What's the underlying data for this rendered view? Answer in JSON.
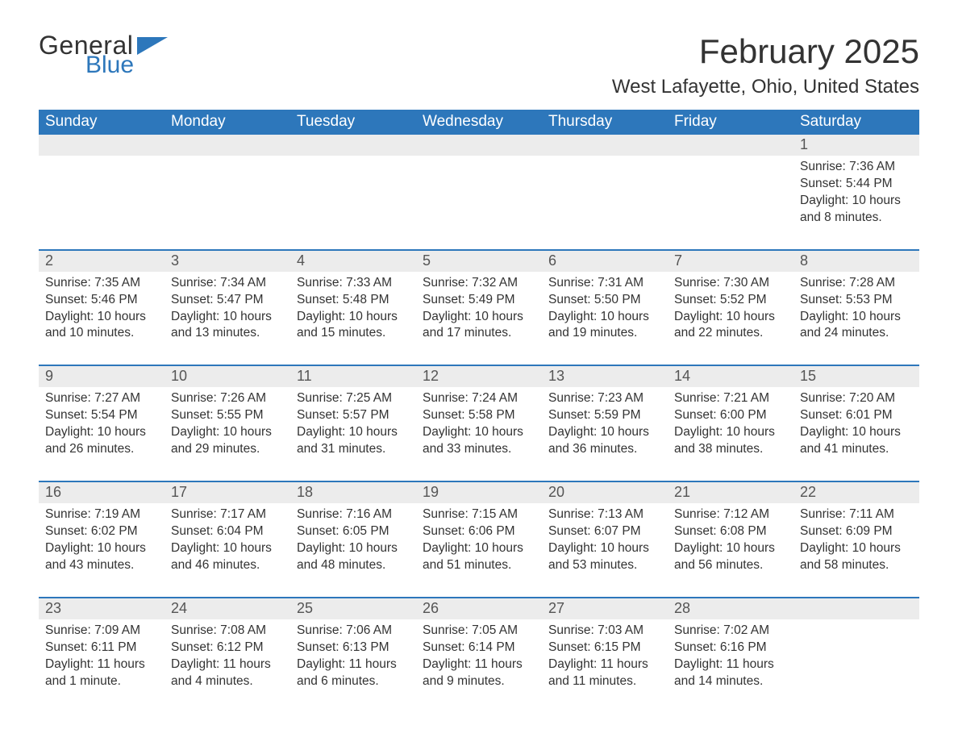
{
  "brand": {
    "word1": "General",
    "word2": "Blue",
    "word1_color": "#333333",
    "word2_color": "#2d77bb",
    "flag_color": "#2d77bb"
  },
  "title": "February 2025",
  "location": "West Lafayette, Ohio, United States",
  "colors": {
    "header_bg": "#2d77bb",
    "header_text": "#ffffff",
    "strip_bg": "#ececec",
    "rule": "#2d77bb",
    "body_text": "#333333"
  },
  "weekdays": [
    "Sunday",
    "Monday",
    "Tuesday",
    "Wednesday",
    "Thursday",
    "Friday",
    "Saturday"
  ],
  "weeks": [
    {
      "days": [
        {
          "num": "",
          "sunrise": "",
          "sunset": "",
          "daylight1": "",
          "daylight2": ""
        },
        {
          "num": "",
          "sunrise": "",
          "sunset": "",
          "daylight1": "",
          "daylight2": ""
        },
        {
          "num": "",
          "sunrise": "",
          "sunset": "",
          "daylight1": "",
          "daylight2": ""
        },
        {
          "num": "",
          "sunrise": "",
          "sunset": "",
          "daylight1": "",
          "daylight2": ""
        },
        {
          "num": "",
          "sunrise": "",
          "sunset": "",
          "daylight1": "",
          "daylight2": ""
        },
        {
          "num": "",
          "sunrise": "",
          "sunset": "",
          "daylight1": "",
          "daylight2": ""
        },
        {
          "num": "1",
          "sunrise": "Sunrise: 7:36 AM",
          "sunset": "Sunset: 5:44 PM",
          "daylight1": "Daylight: 10 hours",
          "daylight2": "and 8 minutes."
        }
      ]
    },
    {
      "days": [
        {
          "num": "2",
          "sunrise": "Sunrise: 7:35 AM",
          "sunset": "Sunset: 5:46 PM",
          "daylight1": "Daylight: 10 hours",
          "daylight2": "and 10 minutes."
        },
        {
          "num": "3",
          "sunrise": "Sunrise: 7:34 AM",
          "sunset": "Sunset: 5:47 PM",
          "daylight1": "Daylight: 10 hours",
          "daylight2": "and 13 minutes."
        },
        {
          "num": "4",
          "sunrise": "Sunrise: 7:33 AM",
          "sunset": "Sunset: 5:48 PM",
          "daylight1": "Daylight: 10 hours",
          "daylight2": "and 15 minutes."
        },
        {
          "num": "5",
          "sunrise": "Sunrise: 7:32 AM",
          "sunset": "Sunset: 5:49 PM",
          "daylight1": "Daylight: 10 hours",
          "daylight2": "and 17 minutes."
        },
        {
          "num": "6",
          "sunrise": "Sunrise: 7:31 AM",
          "sunset": "Sunset: 5:50 PM",
          "daylight1": "Daylight: 10 hours",
          "daylight2": "and 19 minutes."
        },
        {
          "num": "7",
          "sunrise": "Sunrise: 7:30 AM",
          "sunset": "Sunset: 5:52 PM",
          "daylight1": "Daylight: 10 hours",
          "daylight2": "and 22 minutes."
        },
        {
          "num": "8",
          "sunrise": "Sunrise: 7:28 AM",
          "sunset": "Sunset: 5:53 PM",
          "daylight1": "Daylight: 10 hours",
          "daylight2": "and 24 minutes."
        }
      ]
    },
    {
      "days": [
        {
          "num": "9",
          "sunrise": "Sunrise: 7:27 AM",
          "sunset": "Sunset: 5:54 PM",
          "daylight1": "Daylight: 10 hours",
          "daylight2": "and 26 minutes."
        },
        {
          "num": "10",
          "sunrise": "Sunrise: 7:26 AM",
          "sunset": "Sunset: 5:55 PM",
          "daylight1": "Daylight: 10 hours",
          "daylight2": "and 29 minutes."
        },
        {
          "num": "11",
          "sunrise": "Sunrise: 7:25 AM",
          "sunset": "Sunset: 5:57 PM",
          "daylight1": "Daylight: 10 hours",
          "daylight2": "and 31 minutes."
        },
        {
          "num": "12",
          "sunrise": "Sunrise: 7:24 AM",
          "sunset": "Sunset: 5:58 PM",
          "daylight1": "Daylight: 10 hours",
          "daylight2": "and 33 minutes."
        },
        {
          "num": "13",
          "sunrise": "Sunrise: 7:23 AM",
          "sunset": "Sunset: 5:59 PM",
          "daylight1": "Daylight: 10 hours",
          "daylight2": "and 36 minutes."
        },
        {
          "num": "14",
          "sunrise": "Sunrise: 7:21 AM",
          "sunset": "Sunset: 6:00 PM",
          "daylight1": "Daylight: 10 hours",
          "daylight2": "and 38 minutes."
        },
        {
          "num": "15",
          "sunrise": "Sunrise: 7:20 AM",
          "sunset": "Sunset: 6:01 PM",
          "daylight1": "Daylight: 10 hours",
          "daylight2": "and 41 minutes."
        }
      ]
    },
    {
      "days": [
        {
          "num": "16",
          "sunrise": "Sunrise: 7:19 AM",
          "sunset": "Sunset: 6:02 PM",
          "daylight1": "Daylight: 10 hours",
          "daylight2": "and 43 minutes."
        },
        {
          "num": "17",
          "sunrise": "Sunrise: 7:17 AM",
          "sunset": "Sunset: 6:04 PM",
          "daylight1": "Daylight: 10 hours",
          "daylight2": "and 46 minutes."
        },
        {
          "num": "18",
          "sunrise": "Sunrise: 7:16 AM",
          "sunset": "Sunset: 6:05 PM",
          "daylight1": "Daylight: 10 hours",
          "daylight2": "and 48 minutes."
        },
        {
          "num": "19",
          "sunrise": "Sunrise: 7:15 AM",
          "sunset": "Sunset: 6:06 PM",
          "daylight1": "Daylight: 10 hours",
          "daylight2": "and 51 minutes."
        },
        {
          "num": "20",
          "sunrise": "Sunrise: 7:13 AM",
          "sunset": "Sunset: 6:07 PM",
          "daylight1": "Daylight: 10 hours",
          "daylight2": "and 53 minutes."
        },
        {
          "num": "21",
          "sunrise": "Sunrise: 7:12 AM",
          "sunset": "Sunset: 6:08 PM",
          "daylight1": "Daylight: 10 hours",
          "daylight2": "and 56 minutes."
        },
        {
          "num": "22",
          "sunrise": "Sunrise: 7:11 AM",
          "sunset": "Sunset: 6:09 PM",
          "daylight1": "Daylight: 10 hours",
          "daylight2": "and 58 minutes."
        }
      ]
    },
    {
      "days": [
        {
          "num": "23",
          "sunrise": "Sunrise: 7:09 AM",
          "sunset": "Sunset: 6:11 PM",
          "daylight1": "Daylight: 11 hours",
          "daylight2": "and 1 minute."
        },
        {
          "num": "24",
          "sunrise": "Sunrise: 7:08 AM",
          "sunset": "Sunset: 6:12 PM",
          "daylight1": "Daylight: 11 hours",
          "daylight2": "and 4 minutes."
        },
        {
          "num": "25",
          "sunrise": "Sunrise: 7:06 AM",
          "sunset": "Sunset: 6:13 PM",
          "daylight1": "Daylight: 11 hours",
          "daylight2": "and 6 minutes."
        },
        {
          "num": "26",
          "sunrise": "Sunrise: 7:05 AM",
          "sunset": "Sunset: 6:14 PM",
          "daylight1": "Daylight: 11 hours",
          "daylight2": "and 9 minutes."
        },
        {
          "num": "27",
          "sunrise": "Sunrise: 7:03 AM",
          "sunset": "Sunset: 6:15 PM",
          "daylight1": "Daylight: 11 hours",
          "daylight2": "and 11 minutes."
        },
        {
          "num": "28",
          "sunrise": "Sunrise: 7:02 AM",
          "sunset": "Sunset: 6:16 PM",
          "daylight1": "Daylight: 11 hours",
          "daylight2": "and 14 minutes."
        },
        {
          "num": "",
          "sunrise": "",
          "sunset": "",
          "daylight1": "",
          "daylight2": ""
        }
      ]
    }
  ]
}
